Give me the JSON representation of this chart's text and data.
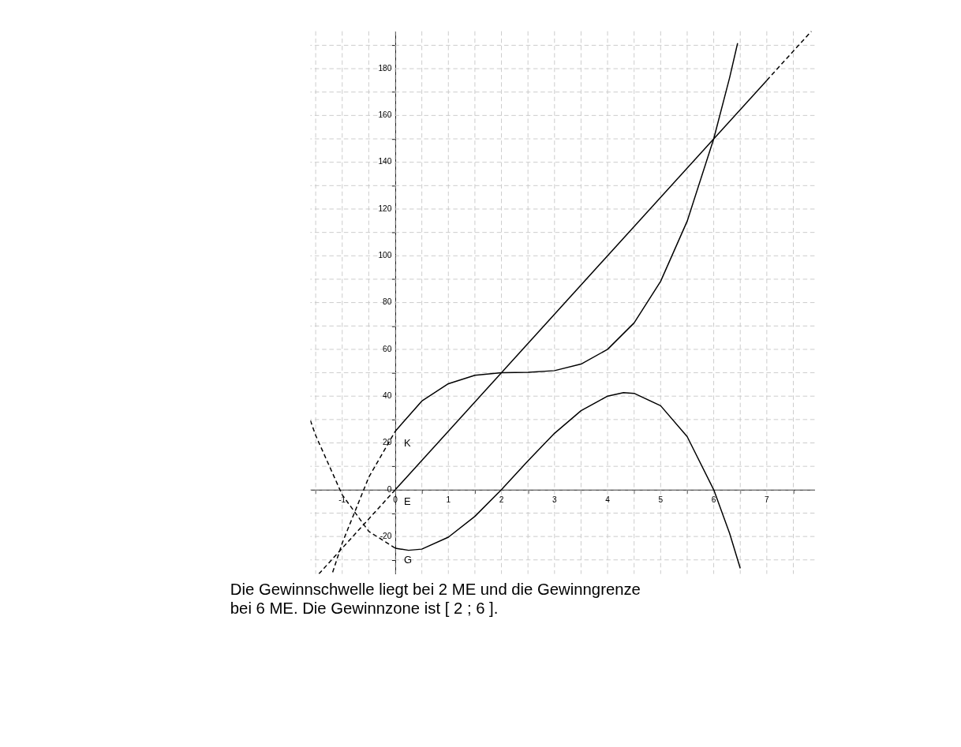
{
  "chart_data": {
    "type": "line",
    "xlim": [
      -1.6,
      7.9
    ],
    "ylim": [
      -36,
      196
    ],
    "xticks": [
      {
        "value": -1.5,
        "label": null
      },
      -1,
      {
        "value": -0.5,
        "label": null
      },
      0,
      {
        "value": 0.5,
        "label": null
      },
      1,
      {
        "value": 1.5,
        "label": null
      },
      2,
      {
        "value": 2.5,
        "label": null
      },
      3,
      {
        "value": 3.5,
        "label": null
      },
      4,
      {
        "value": 4.5,
        "label": null
      },
      5,
      {
        "value": 5.5,
        "label": null
      },
      6,
      {
        "value": 6.5,
        "label": null
      },
      7,
      {
        "value": 7.5,
        "label": null
      }
    ],
    "yticks": [
      {
        "value": -30,
        "label": null
      },
      -20,
      {
        "value": -10,
        "label": null
      },
      0,
      {
        "value": 10,
        "label": null
      },
      20,
      {
        "value": 30,
        "label": null
      },
      40,
      {
        "value": 50,
        "label": null
      },
      60,
      {
        "value": 70,
        "label": null
      },
      80,
      {
        "value": 90,
        "label": null
      },
      100,
      {
        "value": 110,
        "label": null
      },
      120,
      {
        "value": 130,
        "label": null
      },
      140,
      {
        "value": 150,
        "label": null
      },
      160,
      {
        "value": 170,
        "label": null
      },
      180,
      {
        "value": 190,
        "label": null
      }
    ],
    "grid": true,
    "series": [
      {
        "name": "K",
        "color": "#000000",
        "line_style": "solid",
        "x": [
          0,
          0.5,
          1,
          1.5,
          2,
          2.5,
          3,
          3.5,
          4,
          4.5,
          5,
          5.5,
          6,
          6.3,
          6.45
        ],
        "values": [
          25,
          37.9,
          45.3,
          48.9,
          50,
          50.2,
          50.9,
          53.7,
          60,
          71.3,
          89.1,
          114.8,
          150,
          176.2,
          190.9
        ]
      },
      {
        "color": "#000000",
        "line_style": "dashed",
        "x": [
          -1.18,
          -1,
          -0.5,
          0
        ],
        "values": [
          -35.3,
          -22.8,
          5.3,
          25
        ]
      },
      {
        "name": "E",
        "color": "#000000",
        "line_style": "solid",
        "x": [
          0,
          7
        ],
        "values": [
          0,
          175
        ]
      },
      {
        "color": "#000000",
        "line_style": "dashed",
        "x": [
          -1.44,
          0
        ],
        "values": [
          -36,
          0
        ]
      },
      {
        "color": "#000000",
        "line_style": "dashed",
        "x": [
          7,
          7.84
        ],
        "values": [
          175,
          196
        ]
      },
      {
        "name": "G",
        "color": "#000000",
        "line_style": "solid",
        "x": [
          0,
          0.25,
          0.5,
          1,
          1.5,
          2,
          2.5,
          3,
          3.5,
          4,
          4.3,
          4.5,
          5,
          5.5,
          6,
          6.3,
          6.5
        ],
        "values": [
          -25,
          -25.9,
          -25.4,
          -20.3,
          -11.4,
          0,
          12.3,
          24.1,
          33.8,
          40,
          41.5,
          41.2,
          35.9,
          22.7,
          0,
          -18.7,
          -33.6
        ]
      },
      {
        "color": "#000000",
        "line_style": "dashed",
        "x": [
          -1.6,
          -1.5,
          -1,
          -0.5,
          0
        ],
        "values": [
          29.6,
          23.2,
          -2.2,
          -17.8,
          -25
        ]
      }
    ],
    "annotations": [
      "Die Gewinnschwelle liegt bei 2 ME und die Gewinngrenze  bei 6 ME. Die Gewinnzone ist [ 2 ; 6 ]."
    ]
  }
}
